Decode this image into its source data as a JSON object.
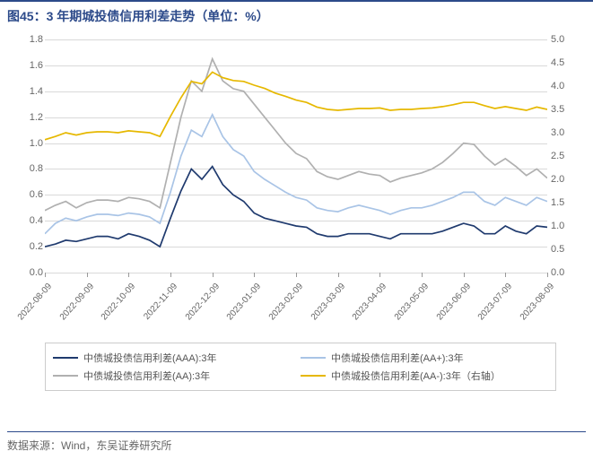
{
  "title": "图45：3 年期城投债信用利差走势（单位：%）",
  "source": "数据来源：Wind，东吴证券研究所",
  "chart": {
    "type": "line",
    "background_color": "#ffffff",
    "grid_color": "#d9d9d9",
    "title_color": "#2c4a8a",
    "title_fontsize": 14,
    "label_fontsize": 11,
    "x_labels": [
      "2022-08-09",
      "2022-09-09",
      "2022-10-09",
      "2022-11-09",
      "2022-12-09",
      "2023-01-09",
      "2023-02-09",
      "2023-03-09",
      "2023-04-09",
      "2023-05-09",
      "2023-06-09",
      "2023-07-09",
      "2023-08-09"
    ],
    "left_axis": {
      "min": 0.0,
      "max": 1.8,
      "step": 0.2
    },
    "right_axis": {
      "min": 0.0,
      "max": 5.0,
      "step": 0.5
    },
    "series": [
      {
        "id": "aaa",
        "label": "中债城投债信用利差(AAA):3年",
        "color": "#1f3a6e",
        "width": 1.7,
        "axis": "left",
        "values": [
          0.2,
          0.22,
          0.25,
          0.24,
          0.26,
          0.28,
          0.28,
          0.26,
          0.3,
          0.28,
          0.25,
          0.2,
          0.42,
          0.63,
          0.8,
          0.72,
          0.82,
          0.68,
          0.6,
          0.55,
          0.46,
          0.42,
          0.4,
          0.38,
          0.36,
          0.35,
          0.3,
          0.28,
          0.28,
          0.3,
          0.3,
          0.3,
          0.28,
          0.26,
          0.3,
          0.3,
          0.3,
          0.3,
          0.32,
          0.35,
          0.38,
          0.36,
          0.3,
          0.3,
          0.36,
          0.32,
          0.3,
          0.36,
          0.35
        ]
      },
      {
        "id": "aap",
        "label": "中债城投债信用利差(AA+):3年",
        "color": "#a9c4e6",
        "width": 1.7,
        "axis": "left",
        "values": [
          0.3,
          0.38,
          0.42,
          0.4,
          0.43,
          0.45,
          0.45,
          0.44,
          0.46,
          0.45,
          0.43,
          0.38,
          0.62,
          0.9,
          1.1,
          1.05,
          1.22,
          1.05,
          0.95,
          0.9,
          0.78,
          0.72,
          0.67,
          0.62,
          0.58,
          0.56,
          0.5,
          0.48,
          0.47,
          0.5,
          0.52,
          0.5,
          0.48,
          0.45,
          0.48,
          0.5,
          0.5,
          0.52,
          0.55,
          0.58,
          0.62,
          0.62,
          0.55,
          0.52,
          0.58,
          0.55,
          0.52,
          0.58,
          0.55
        ]
      },
      {
        "id": "aa",
        "label": "中债城投债信用利差(AA):3年",
        "color": "#b0b0b0",
        "width": 1.7,
        "axis": "left",
        "values": [
          0.48,
          0.52,
          0.55,
          0.5,
          0.54,
          0.56,
          0.56,
          0.55,
          0.58,
          0.57,
          0.55,
          0.5,
          0.85,
          1.2,
          1.48,
          1.4,
          1.65,
          1.48,
          1.42,
          1.4,
          1.3,
          1.2,
          1.1,
          1.0,
          0.92,
          0.88,
          0.78,
          0.74,
          0.72,
          0.75,
          0.78,
          0.76,
          0.75,
          0.7,
          0.73,
          0.75,
          0.77,
          0.8,
          0.85,
          0.92,
          1.0,
          0.99,
          0.9,
          0.83,
          0.88,
          0.82,
          0.75,
          0.8,
          0.73
        ]
      },
      {
        "id": "aam",
        "label": "中债城投债信用利差(AA-):3年（右轴）",
        "color": "#e6b800",
        "width": 1.7,
        "axis": "right",
        "values": [
          2.85,
          2.92,
          3.0,
          2.95,
          3.0,
          3.02,
          3.02,
          3.0,
          3.04,
          3.02,
          3.0,
          2.92,
          3.35,
          3.75,
          4.1,
          4.05,
          4.3,
          4.18,
          4.12,
          4.1,
          4.02,
          3.95,
          3.85,
          3.78,
          3.7,
          3.65,
          3.55,
          3.5,
          3.48,
          3.5,
          3.52,
          3.52,
          3.53,
          3.48,
          3.5,
          3.5,
          3.52,
          3.53,
          3.56,
          3.6,
          3.65,
          3.65,
          3.58,
          3.52,
          3.56,
          3.52,
          3.48,
          3.55,
          3.5
        ]
      }
    ]
  }
}
